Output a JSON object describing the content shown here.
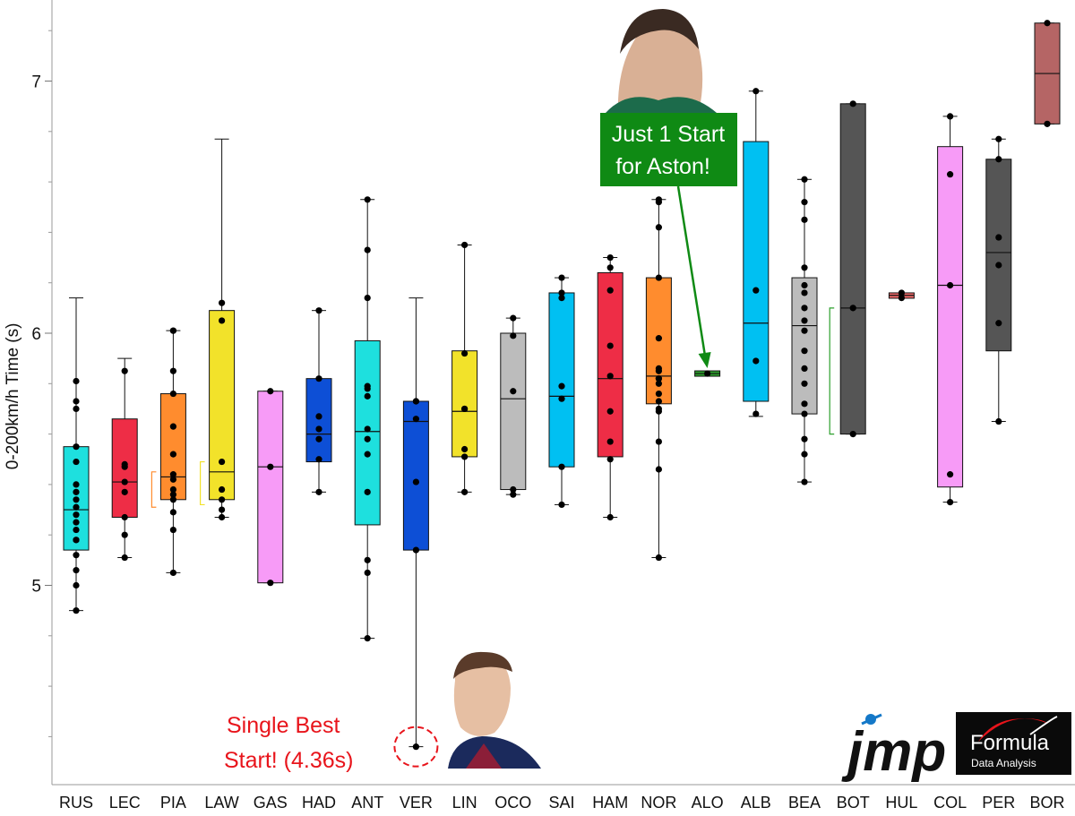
{
  "chart_data": {
    "type": "box",
    "title": "",
    "xlabel": "",
    "ylabel": "0-200km/h Time (s)",
    "ylim": [
      4.2,
      7.3
    ],
    "yticks": [
      5,
      6,
      7
    ],
    "y_tick_labels": [
      "5",
      "6",
      "7"
    ],
    "grid": false,
    "categories": [
      "RUS",
      "LEC",
      "PIA",
      "LAW",
      "GAS",
      "HAD",
      "ANT",
      "VER",
      "LIN",
      "OCO",
      "SAI",
      "HAM",
      "NOR",
      "ALO",
      "ALB",
      "BEA",
      "BOT",
      "HUL",
      "COL",
      "PER",
      "BOR"
    ],
    "series": [
      {
        "driver": "RUS",
        "color": "#1ee0de",
        "min": 4.9,
        "q1": 5.14,
        "median": 5.3,
        "q3": 5.55,
        "max": 6.14,
        "points": [
          4.9,
          5.0,
          5.06,
          5.12,
          5.18,
          5.18,
          5.22,
          5.25,
          5.28,
          5.31,
          5.34,
          5.37,
          5.4,
          5.49,
          5.55,
          5.7,
          5.73,
          5.81
        ]
      },
      {
        "driver": "LEC",
        "color": "#ee2d46",
        "min": 5.11,
        "q1": 5.27,
        "median": 5.41,
        "q3": 5.66,
        "max": 5.9,
        "points": [
          5.11,
          5.2,
          5.27,
          5.37,
          5.41,
          5.47,
          5.48,
          5.85
        ]
      },
      {
        "driver": "PIA",
        "color": "#ff8c2e",
        "min": 5.05,
        "q1": 5.34,
        "median": 5.43,
        "q3": 5.76,
        "max": 6.01,
        "points": [
          5.05,
          5.22,
          5.29,
          5.34,
          5.36,
          5.38,
          5.42,
          5.44,
          5.52,
          5.63,
          5.76,
          5.85,
          6.01,
          6.01
        ]
      },
      {
        "driver": "LAW",
        "color": "#f2e22a",
        "min": 5.27,
        "q1": 5.34,
        "median": 5.45,
        "q3": 6.09,
        "max": 6.77,
        "points": [
          5.27,
          5.3,
          5.34,
          5.38,
          5.49,
          6.05,
          6.12
        ]
      },
      {
        "driver": "GAS",
        "color": "#f79bf7",
        "min": 5.01,
        "q1": 5.01,
        "median": 5.47,
        "q3": 5.77,
        "max": 5.77,
        "points": [
          5.01,
          5.47,
          5.77
        ]
      },
      {
        "driver": "HAD",
        "color": "#0d4fd6",
        "min": 5.37,
        "q1": 5.49,
        "median": 5.6,
        "q3": 5.82,
        "max": 6.09,
        "points": [
          5.37,
          5.5,
          5.58,
          5.62,
          5.67,
          5.82,
          6.09
        ]
      },
      {
        "driver": "ANT",
        "color": "#1ee0de",
        "min": 4.79,
        "q1": 5.24,
        "median": 5.61,
        "q3": 5.97,
        "max": 6.53,
        "points": [
          4.79,
          5.05,
          5.1,
          5.37,
          5.52,
          5.58,
          5.62,
          5.75,
          5.78,
          5.79,
          6.14,
          6.33,
          6.53
        ]
      },
      {
        "driver": "VER",
        "color": "#0d4fd6",
        "min": 4.36,
        "q1": 5.14,
        "median": 5.65,
        "q3": 5.73,
        "max": 6.14,
        "points": [
          4.36,
          5.14,
          5.41,
          5.66,
          5.73,
          5.73
        ]
      },
      {
        "driver": "LIN",
        "color": "#f2e22a",
        "min": 5.37,
        "q1": 5.51,
        "median": 5.69,
        "q3": 5.93,
        "max": 6.35,
        "points": [
          5.37,
          5.51,
          5.54,
          5.7,
          5.7,
          5.92,
          6.35
        ]
      },
      {
        "driver": "OCO",
        "color": "#bcbcbc",
        "min": 5.36,
        "q1": 5.38,
        "median": 5.74,
        "q3": 6.0,
        "max": 6.06,
        "points": [
          5.36,
          5.38,
          5.77,
          5.99,
          6.06
        ]
      },
      {
        "driver": "SAI",
        "color": "#00c0f2",
        "min": 5.32,
        "q1": 5.47,
        "median": 5.75,
        "q3": 6.16,
        "max": 6.22,
        "points": [
          5.32,
          5.47,
          5.74,
          5.79,
          6.14,
          6.16,
          6.22
        ]
      },
      {
        "driver": "HAM",
        "color": "#ee2d46",
        "min": 5.27,
        "q1": 5.51,
        "median": 5.82,
        "q3": 6.24,
        "max": 6.3,
        "points": [
          5.27,
          5.5,
          5.57,
          5.69,
          5.83,
          5.95,
          6.17,
          6.26,
          6.3
        ]
      },
      {
        "driver": "NOR",
        "color": "#ff8c2e",
        "min": 5.11,
        "q1": 5.72,
        "median": 5.83,
        "q3": 6.22,
        "max": 6.53,
        "points": [
          5.11,
          5.46,
          5.57,
          5.69,
          5.7,
          5.73,
          5.76,
          5.8,
          5.82,
          5.82,
          5.85,
          5.86,
          5.98,
          6.22,
          6.42,
          6.52,
          6.53
        ]
      },
      {
        "driver": "ALO",
        "color": "#2ca02c",
        "min": 5.84,
        "q1": 5.84,
        "median": 5.84,
        "q3": 5.84,
        "max": 5.84,
        "points": [
          5.84
        ]
      },
      {
        "driver": "ALB",
        "color": "#00c0f2",
        "min": 5.67,
        "q1": 5.73,
        "median": 6.04,
        "q3": 6.76,
        "max": 6.96,
        "points": [
          5.68,
          5.89,
          6.17,
          6.96
        ]
      },
      {
        "driver": "BEA",
        "color": "#bcbcbc",
        "min": 5.41,
        "q1": 5.68,
        "median": 6.03,
        "q3": 6.22,
        "max": 6.61,
        "points": [
          5.41,
          5.52,
          5.58,
          5.68,
          5.72,
          5.8,
          5.86,
          5.93,
          6.01,
          6.05,
          6.1,
          6.16,
          6.19,
          6.26,
          6.45,
          6.52,
          6.61
        ]
      },
      {
        "driver": "BOT",
        "color": "#555555",
        "min": 5.6,
        "q1": 5.6,
        "median": 6.1,
        "q3": 6.91,
        "max": 6.91,
        "points": [
          5.6,
          6.1,
          6.91
        ]
      },
      {
        "driver": "HUL",
        "color": "#f06a6a",
        "min": 6.14,
        "q1": 6.14,
        "median": 6.15,
        "q3": 6.16,
        "max": 6.16,
        "points": [
          6.14,
          6.16
        ]
      },
      {
        "driver": "COL",
        "color": "#f79bf7",
        "min": 5.33,
        "q1": 5.39,
        "median": 6.19,
        "q3": 6.74,
        "max": 6.86,
        "points": [
          5.33,
          5.44,
          6.19,
          6.63,
          6.86
        ]
      },
      {
        "driver": "PER",
        "color": "#555555",
        "min": 5.65,
        "q1": 5.93,
        "median": 6.32,
        "q3": 6.69,
        "max": 6.77,
        "points": [
          5.65,
          6.04,
          6.27,
          6.38,
          6.69,
          6.77
        ]
      },
      {
        "driver": "BOR",
        "color": "#b56565",
        "min": 6.83,
        "q1": 6.83,
        "median": 7.03,
        "q3": 7.23,
        "max": 7.23,
        "points": [
          6.83,
          7.23
        ]
      }
    ],
    "annotations": {
      "best_start": {
        "line1": "Single Best",
        "line2": "Start! (4.36s)",
        "color": "#e8141b",
        "driver": "VER",
        "value": 4.36
      },
      "aston": {
        "line1": "Just 1 Start",
        "line2": "for Aston!",
        "bg_color": "#0f8a14",
        "arrow_color": "#2ca02c",
        "driver": "ALO",
        "value": 5.84
      }
    }
  },
  "logos": {
    "jmp": "jmp",
    "fda_title": "Formula",
    "fda_subtitle": "Data Analysis"
  }
}
